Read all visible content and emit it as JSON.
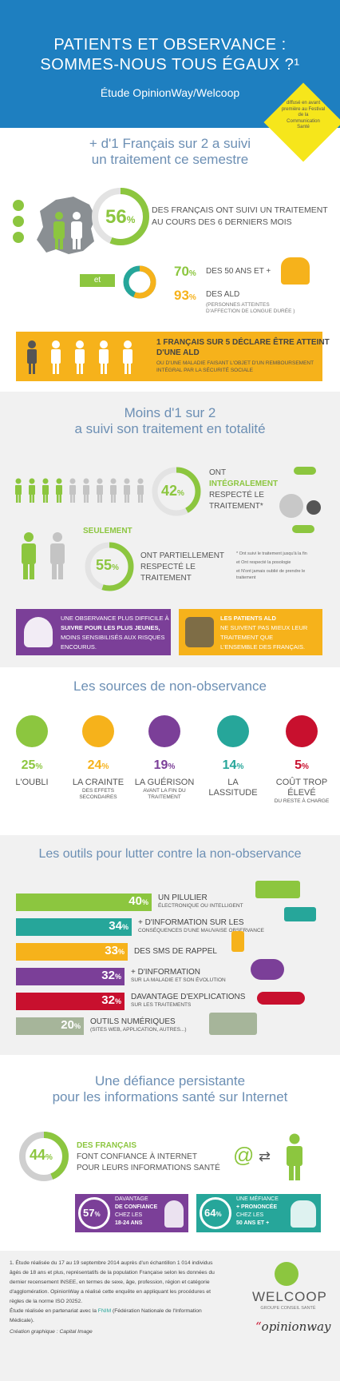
{
  "header": {
    "title_line1": "PATIENTS ET OBSERVANCE :",
    "title_line2": "SOMMES-NOUS TOUS ÉGAUX ?¹",
    "subtitle": "Étude OpinionWay/Welcoop",
    "badge": "diffusé en avant première au Festival de la Communication Santé"
  },
  "s1": {
    "title_line1": "+ d'1 Français sur 2 a suivi",
    "title_line2": "un traitement ce semestre",
    "p56": "56",
    "p56_text1": "DES FRANÇAIS ONT SUIVI UN TRAITEMENT",
    "p56_text2": "AU COURS DES 6 DERNIERS MOIS",
    "et": "et",
    "p70": "70",
    "p70_text": "DES 50 ANS ET +",
    "p93": "93",
    "p93_text": "DES ALD",
    "p93_sub1": "(PERSONNES ATTEINTES",
    "p93_sub2": "D'AFFECTION DE LONGUE DURÉE )",
    "ald_line1": "1 FRANÇAIS SUR 5 DÉCLARE ÊTRE ATTEINT",
    "ald_line2": "D'UNE ALD",
    "ald_sub1": "OU D'UNE MALADIE FAISANT L'OBJET D'UN REMBOURSEMENT",
    "ald_sub2": "INTÉGRAL PAR LA SÉCURITÉ SOCIALE"
  },
  "s2": {
    "title_line1": "Moins d'1 sur 2",
    "title_line2": "a suivi son traitement en totalité",
    "p42": "42",
    "p42_t1": "ONT",
    "p42_t2": "INTÉGRALEMENT",
    "p42_t3": "RESPECTÉ LE",
    "p42_t4": "TRAITEMENT*",
    "seulement": "SEULEMENT",
    "p55": "55",
    "p55_t1": "ONT PARTIELLEMENT",
    "p55_t2": "RESPECTÉ LE",
    "p55_t3": "TRAITEMENT",
    "note1": "* Ont suivi le traitement jusqu'à la fin",
    "note2": "et Ont respecté la posologie",
    "note3": "et N'ont jamais oublié de prendre le",
    "note4": "traitement",
    "young1": "UNE OBSERVANCE PLUS DIFFICILE À",
    "young2": "SUIVRE POUR LES PLUS JEUNES,",
    "young3": "MOINS SENSIBILISÉS AUX RISQUES",
    "young4": "ENCOURUS.",
    "ald1": "LES PATIENTS ALD",
    "ald2": "NE SUIVENT PAS MIEUX LEUR",
    "ald3": "TRAITEMENT QUE",
    "ald4": "L'ENSEMBLE DES FRANÇAIS."
  },
  "s3": {
    "title": "Les sources de non-observance",
    "items": [
      {
        "pct": "25",
        "label1": "L'OUBLI",
        "label2": "",
        "label3": "",
        "color": "#8cc63f"
      },
      {
        "pct": "24",
        "label1": "LA CRAINTE",
        "label2": "DES EFFETS",
        "label3": "SECONDAIRES",
        "color": "#f6b21b"
      },
      {
        "pct": "19",
        "label1": "LA GUÉRISON",
        "label2": "AVANT LA FIN DU",
        "label3": "TRAITEMENT",
        "color": "#7b3f98"
      },
      {
        "pct": "14",
        "label1": "LA",
        "label2": "LASSITUDE",
        "label3": "",
        "color": "#26a69a"
      },
      {
        "pct": "5",
        "label1": "COÛT TROP",
        "label2": "ÉLEVÉ",
        "label3": "DU RESTE À CHARGE",
        "color": "#c8102e"
      }
    ]
  },
  "s4": {
    "title": "Les outils pour lutter contre la non-observance",
    "bars": [
      {
        "pct": "40",
        "value": 40,
        "label": "UN PILULIER",
        "sub": "ÉLECTRONIQUE OU INTELLIGENT",
        "color": "#8cc63f"
      },
      {
        "pct": "34",
        "value": 34,
        "label": "+ D'INFORMATION SUR LES",
        "sub": "CONSÉQUENCES D'UNE MAUVAISE OBSERVANCE",
        "color": "#26a69a"
      },
      {
        "pct": "33",
        "value": 33,
        "label": "DES SMS DE RAPPEL",
        "sub": "",
        "color": "#f6b21b"
      },
      {
        "pct": "32",
        "value": 32,
        "label": "+ D'INFORMATION",
        "sub": "SUR LA MALADIE ET SON ÉVOLUTION",
        "color": "#7b3f98"
      },
      {
        "pct": "32",
        "value": 32,
        "label": "DAVANTAGE D'EXPLICATIONS",
        "sub": "SUR LES TRAITEMENTS",
        "color": "#c8102e"
      },
      {
        "pct": "20",
        "value": 20,
        "label": "OUTILS NUMÉRIQUES",
        "sub": "(SITES WEB, APPLICATION, AUTRES...)",
        "color": "#a6b59a"
      }
    ]
  },
  "s5": {
    "title_line1": "Une défiance persistante",
    "title_line2": "pour les informations santé sur Internet",
    "p44": "44",
    "p44_t1": "DES FRANÇAIS",
    "p44_t2": "FONT CONFIANCE À INTERNET",
    "p44_t3": "POUR LEURS INFORMATIONS SANTÉ",
    "p57": "57",
    "p57_t1": "DAVANTAGE",
    "p57_t2": "DE CONFIANCE",
    "p57_t3": "CHEZ LES",
    "p57_t4": "18-24 ANS",
    "p64": "64",
    "p64_t1": "UNE MÉFIANCE",
    "p64_t2": "+ PRONONCÉE",
    "p64_t3": "CHEZ LES",
    "p64_t4": "50 ANS ET +"
  },
  "footer": {
    "line1": "1. Étude réalisée du 17 au 19 septembre 2014 auprès d'un échantillon 1 014 individus",
    "line2": "âgés de 18 ans et plus, représentatifs de la population Française selon les données du",
    "line3": "dernier recensement INSEE, en termes de sexe, âge, profession, région et catégorie",
    "line4": "d'agglomération. OpinionWay a réalisé cette enquête en appliquant les procédures et",
    "line5": "règles de la norme ISO 20252.",
    "line6a": "Étude réalisée en partenariat avec la ",
    "line6b": "FNIM",
    "line6c": " (Fédération Nationale de l'Information",
    "line7": "Médicale).",
    "credit": "Création graphique : Capital Image",
    "welcoop": "WELCOOP",
    "welcoop_sub": "GROUPE CONSEIL SANTÉ",
    "opinionway": "opinionway"
  },
  "percent": "%"
}
